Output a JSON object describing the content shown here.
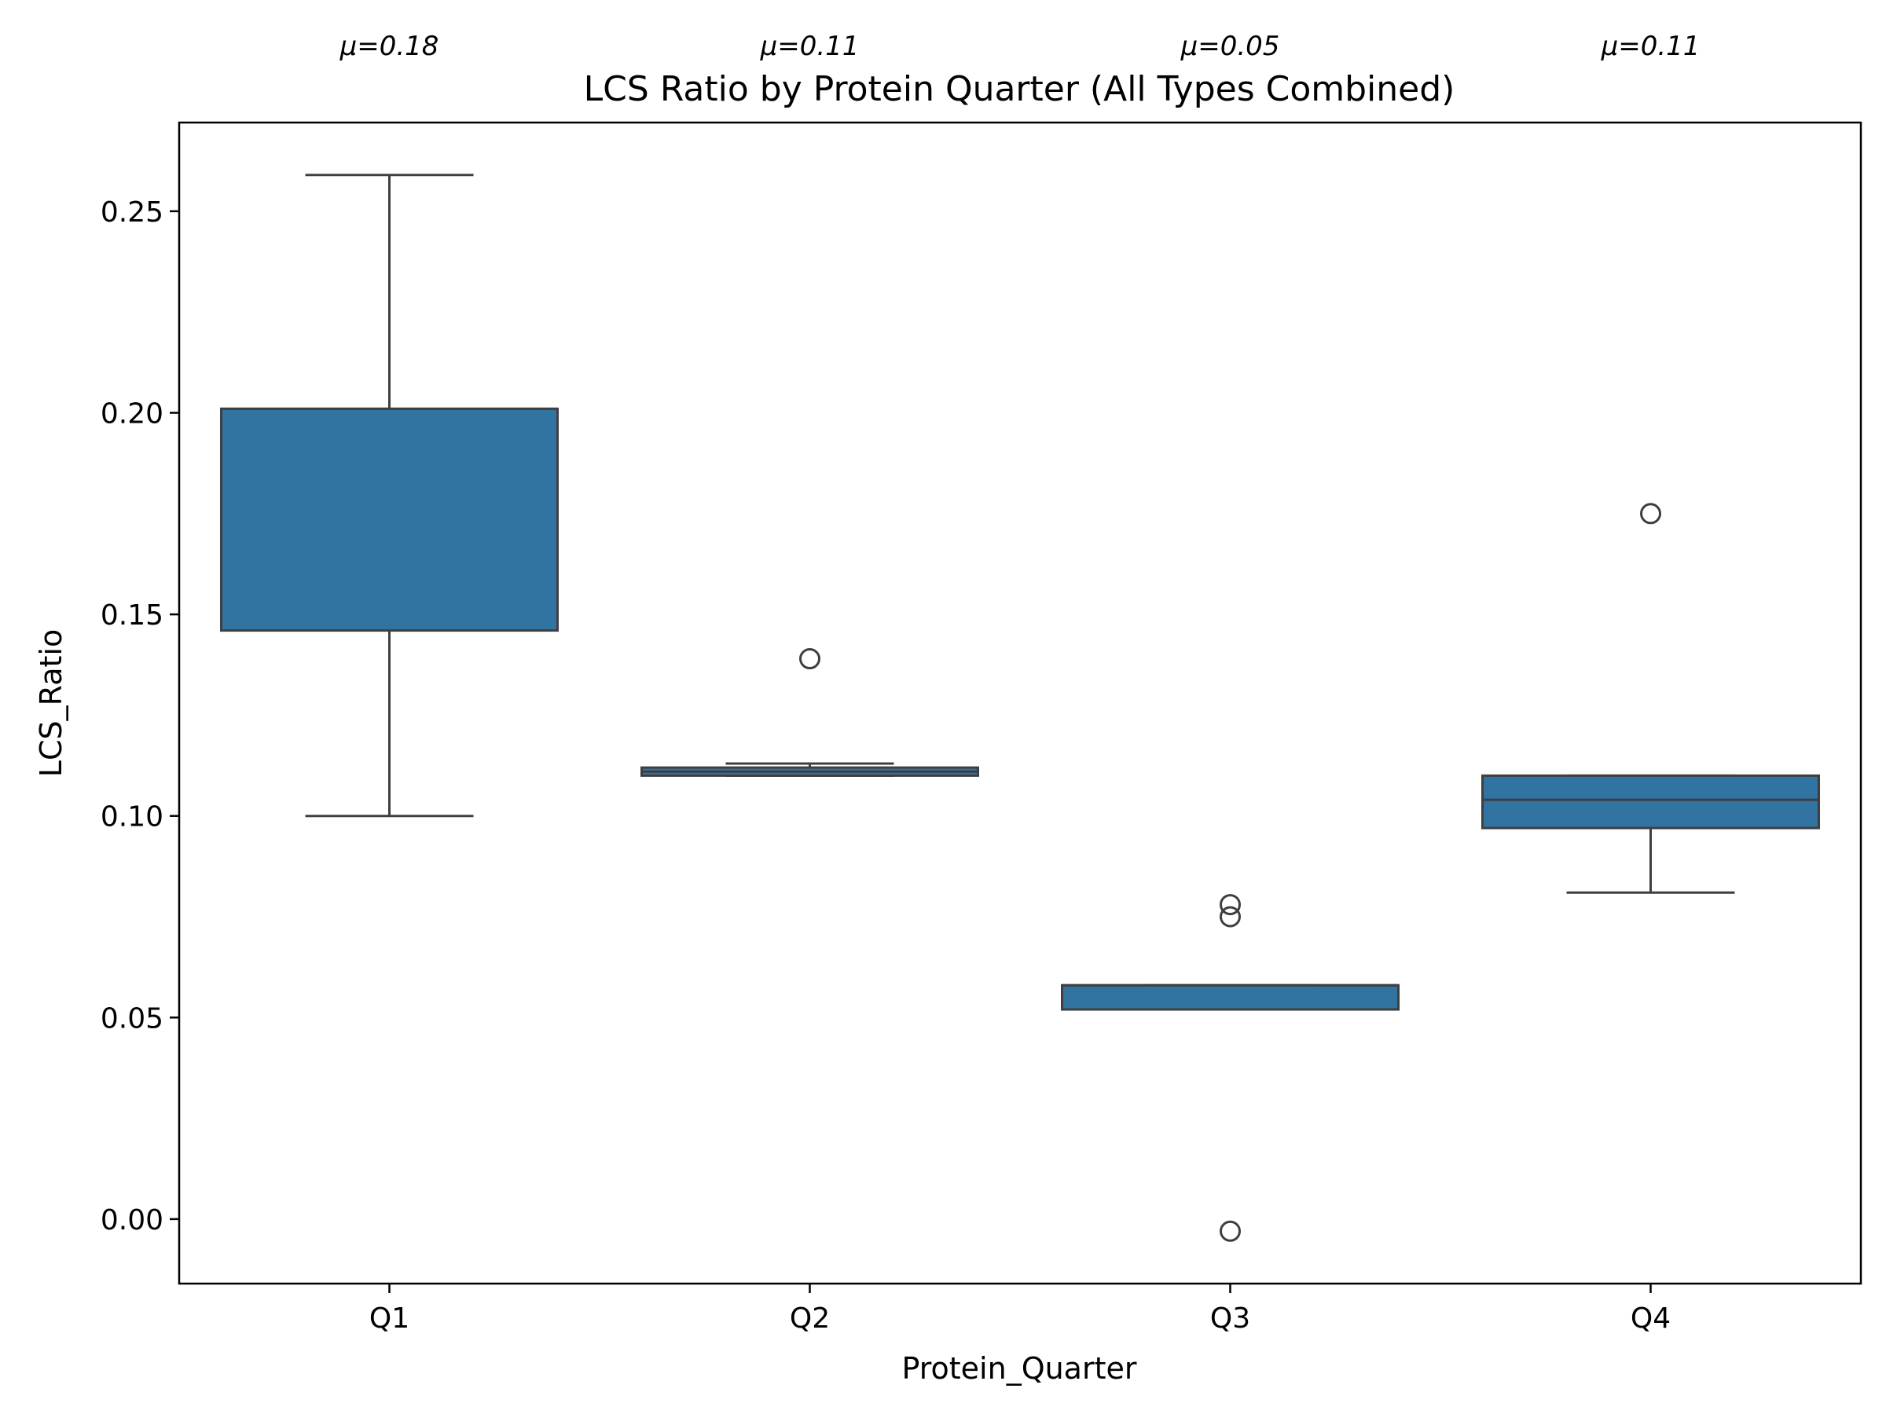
{
  "chart_data": {
    "type": "box",
    "title": "LCS Ratio by Protein Quarter (All Types Combined)",
    "xlabel": "Protein_Quarter",
    "ylabel": "LCS_Ratio",
    "ylim": [
      -0.016,
      0.272
    ],
    "yticks": [
      0.0,
      0.05,
      0.1,
      0.15,
      0.2,
      0.25
    ],
    "ytick_labels": [
      "0.00",
      "0.05",
      "0.10",
      "0.15",
      "0.20",
      "0.25"
    ],
    "grid": false,
    "colors": {
      "box_fill": "#3274a1",
      "line": "#3f3f3f",
      "frame": "#000000"
    },
    "categories": [
      "Q1",
      "Q2",
      "Q3",
      "Q4"
    ],
    "boxes": [
      {
        "category": "Q1",
        "whisker_low": 0.1,
        "q1": 0.146,
        "median": 0.201,
        "q3": 0.201,
        "whisker_high": 0.259,
        "outliers": []
      },
      {
        "category": "Q2",
        "whisker_low": 0.11,
        "q1": 0.11,
        "median": 0.111,
        "q3": 0.112,
        "whisker_high": 0.113,
        "outliers": [
          0.139
        ]
      },
      {
        "category": "Q3",
        "whisker_low": 0.052,
        "q1": 0.052,
        "median": 0.058,
        "q3": 0.058,
        "whisker_high": 0.058,
        "outliers": [
          0.078,
          0.075,
          -0.003
        ]
      },
      {
        "category": "Q4",
        "whisker_low": 0.081,
        "q1": 0.097,
        "median": 0.104,
        "q3": 0.11,
        "whisker_high": 0.11,
        "outliers": [
          0.175
        ]
      }
    ],
    "annotations": [
      "μ=0.18",
      "μ=0.11",
      "μ=0.05",
      "μ=0.11"
    ]
  }
}
